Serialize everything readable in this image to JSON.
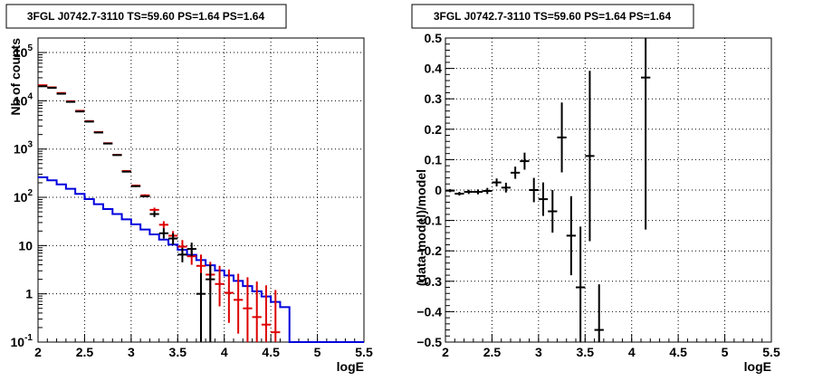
{
  "chart_data": [
    {
      "type": "line",
      "title": "3FGL J0742.7-3110 TS=59.60 PS=1.64 PS=1.64",
      "xlabel": "logE",
      "ylabel": "Nb of counts",
      "xlim": [
        2,
        5.5
      ],
      "ylim": [
        0.1,
        200000
      ],
      "yscale": "log",
      "grid": true,
      "x_ticks": [
        "2",
        "2.5",
        "3",
        "3.5",
        "4",
        "4.5",
        "5",
        "5.5"
      ],
      "y_ticks": [
        {
          "base": "10",
          "exp": "-1",
          "value": 0.1
        },
        {
          "base": "1",
          "exp": "",
          "value": 1
        },
        {
          "base": "10",
          "exp": "",
          "value": 10
        },
        {
          "base": "10",
          "exp": "2",
          "value": 100
        },
        {
          "base": "10",
          "exp": "3",
          "value": 1000
        },
        {
          "base": "10",
          "exp": "4",
          "value": 10000
        },
        {
          "base": "10",
          "exp": "5",
          "value": 100000
        }
      ],
      "bin_edges": [
        2.0,
        2.1,
        2.2,
        2.3,
        2.4,
        2.5,
        2.6,
        2.7,
        2.8,
        2.9,
        3.0,
        3.1,
        3.2,
        3.3,
        3.4,
        3.5,
        3.6,
        3.7,
        3.8,
        3.9,
        4.0,
        4.1,
        4.2,
        4.3,
        4.4,
        4.5,
        4.6,
        4.7,
        4.8,
        4.9,
        5.0,
        5.1,
        5.2,
        5.3,
        5.4,
        5.5
      ],
      "series": [
        {
          "color": "#0000dd",
          "style": "step",
          "values": [
            260,
            225,
            185,
            150,
            118,
            92,
            72,
            57,
            45,
            35,
            27.5,
            21.5,
            17,
            13.3,
            10.5,
            8.2,
            6.4,
            5.0,
            3.9,
            3.05,
            2.4,
            1.85,
            1.45,
            1.13,
            0.88,
            0.68,
            0.53,
            0.1,
            0.1,
            0.1,
            0.1,
            0.1,
            0.1,
            0.1,
            0.1
          ]
        },
        {
          "color": "#dd0000",
          "style": "points",
          "x": [
            2.05,
            2.15,
            2.25,
            2.35,
            2.45,
            2.55,
            2.65,
            2.75,
            2.85,
            2.95,
            3.05,
            3.15,
            3.25,
            3.35,
            3.45,
            3.55,
            3.65,
            3.75,
            3.85,
            3.95,
            4.05,
            4.15,
            4.25,
            4.35,
            4.45,
            4.55
          ],
          "y": [
            21000,
            19000,
            14500,
            9800,
            6200,
            3800,
            2250,
            1320,
            760,
            350,
            175,
            110,
            55,
            27,
            16,
            9.5,
            6.0,
            3.8,
            2.5,
            1.6,
            1.05,
            0.75,
            0.5,
            0.33,
            0.23,
            0.16
          ],
          "y_low": [
            20800,
            18800,
            14300,
            9650,
            6100,
            3720,
            2200,
            1290,
            740,
            340,
            168,
            105,
            50,
            23,
            13,
            7,
            4.0,
            2.2,
            1.1,
            0.55,
            0.25,
            0.15,
            0.1,
            0.1,
            0.1,
            0.1
          ],
          "y_high": [
            21200,
            19200,
            14700,
            9950,
            6300,
            3880,
            2300,
            1350,
            780,
            360,
            182,
            115,
            61,
            32,
            20,
            13,
            9,
            6.5,
            4.6,
            3.8,
            3.2,
            2.6,
            2.2,
            1.8,
            1.5,
            1.2
          ]
        },
        {
          "color": "#000000",
          "style": "points",
          "x": [
            2.05,
            2.15,
            2.25,
            2.35,
            2.45,
            2.55,
            2.65,
            2.75,
            2.85,
            2.95,
            3.05,
            3.15,
            3.25,
            3.35,
            3.45,
            3.55,
            3.65,
            3.75,
            3.85
          ],
          "y": [
            20000,
            18500,
            14000,
            9500,
            6000,
            3700,
            2200,
            1300,
            750,
            340,
            170,
            105,
            45,
            18,
            14,
            6.5,
            8.5,
            1.0,
            2.0
          ],
          "y_low": [
            19800,
            18300,
            13800,
            9350,
            5900,
            3620,
            2150,
            1270,
            730,
            330,
            163,
            100,
            39,
            14,
            10.5,
            4.5,
            6,
            0.1,
            0.1
          ],
          "y_high": [
            20200,
            18700,
            14200,
            9650,
            6100,
            3780,
            2250,
            1330,
            770,
            350,
            177,
            110,
            52,
            23,
            18,
            9,
            11.5,
            2.7,
            4
          ]
        }
      ]
    },
    {
      "type": "scatter",
      "title": "3FGL J0742.7-3110 TS=59.60 PS=1.64 PS=1.64",
      "xlabel": "logE",
      "ylabel": "(data-model)/model",
      "xlim": [
        2,
        5.5
      ],
      "ylim": [
        -0.5,
        0.5
      ],
      "grid": true,
      "x_ticks": [
        "2",
        "2.5",
        "3",
        "3.5",
        "4",
        "4.5",
        "5",
        "5.5"
      ],
      "y_ticks": [
        "-0.5",
        "-0.4",
        "-0.3",
        "-0.2",
        "-0.1",
        "0",
        "0.1",
        "0.2",
        "0.3",
        "0.4",
        "0.5"
      ],
      "series": [
        {
          "color": "#000000",
          "x": [
            2.05,
            2.15,
            2.25,
            2.35,
            2.45,
            2.55,
            2.65,
            2.75,
            2.85,
            2.95,
            3.05,
            3.15,
            3.25,
            3.35,
            3.45,
            3.55,
            3.65,
            4.15
          ],
          "y": [
            -0.002,
            -0.012,
            -0.006,
            -0.006,
            -0.003,
            0.025,
            0.008,
            0.057,
            0.095,
            0.0,
            -0.03,
            -0.07,
            0.173,
            -0.15,
            -0.32,
            0.112,
            -0.46,
            0.37
          ],
          "y_err": [
            0.005,
            0.006,
            0.007,
            0.008,
            0.01,
            0.013,
            0.016,
            0.02,
            0.028,
            0.04,
            0.055,
            0.07,
            0.115,
            0.13,
            0.2,
            0.28,
            0.15,
            0.5
          ]
        }
      ]
    }
  ]
}
